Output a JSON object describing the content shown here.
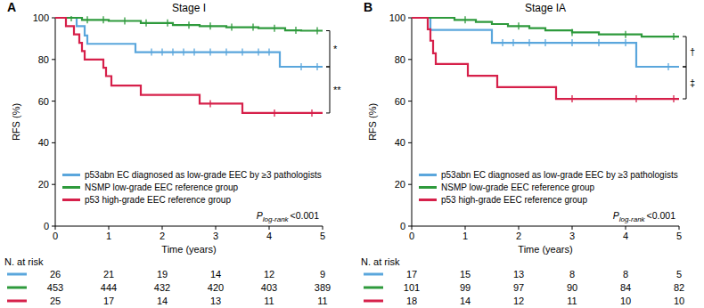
{
  "chart_data": [
    {
      "type": "line",
      "panel": "A",
      "title": "Stage I",
      "x_label": "Time (years)",
      "y_label": "RFS (%)",
      "xlim": [
        0,
        5
      ],
      "ylim": [
        0,
        100
      ],
      "xticks": [
        0,
        1,
        2,
        3,
        4,
        5
      ],
      "yticks": [
        0,
        20,
        40,
        60,
        80,
        100
      ],
      "grid": false,
      "legend": "lower left",
      "line_style": "step",
      "series": [
        {
          "name": "p53abn EC diagnosed as low-grade EEC by ≥3 pathologists",
          "color": "#5aa6dc",
          "x": [
            0,
            0.4,
            0.55,
            0.6,
            1.5,
            4.2,
            5
          ],
          "values": [
            100,
            96,
            91.5,
            87.5,
            83.5,
            76.5,
            76.5
          ],
          "censored_x": [
            1.8,
            2.0,
            2.2,
            2.4,
            2.6,
            2.9,
            3.2,
            3.5,
            3.8,
            4.0,
            4.6,
            4.9
          ]
        },
        {
          "name": "NSMP low-grade EEC reference group",
          "color": "#2e9a3c",
          "x": [
            0,
            0.5,
            1,
            1.6,
            2.2,
            2.7,
            3.2,
            3.8,
            4.3,
            4.6,
            5
          ],
          "values": [
            100,
            99,
            98.5,
            97.5,
            96.5,
            96,
            95.5,
            95,
            94,
            93.8,
            93.8
          ],
          "censored_x": [
            0.3,
            0.6,
            0.9,
            1.3,
            1.7,
            2.1,
            2.5,
            2.9,
            3.3,
            3.7,
            4.1,
            4.5,
            4.9
          ]
        },
        {
          "name": "p53 high-grade EEC reference group",
          "color": "#d6204a",
          "x": [
            0,
            0.2,
            0.35,
            0.45,
            0.5,
            0.55,
            0.9,
            0.95,
            1.05,
            1.6,
            2.7,
            3.5,
            5
          ],
          "values": [
            100,
            96,
            92,
            88,
            84,
            80,
            76,
            72,
            67.5,
            63,
            58.8,
            54.3,
            54.3
          ],
          "censored_x": [
            2.9,
            4.1,
            4.8
          ]
        }
      ],
      "p_value": {
        "symbol": "P",
        "subscript": "log-rank",
        "text": "<0.001"
      },
      "comparisons": [
        {
          "from": 1,
          "to": 0,
          "label": "*"
        },
        {
          "from": 0,
          "to": 2,
          "label": "**"
        }
      ],
      "risk_table": {
        "label": "N. at risk",
        "times": [
          0,
          1,
          2,
          3,
          4,
          5
        ],
        "rows": [
          [
            26,
            21,
            19,
            14,
            12,
            9
          ],
          [
            453,
            444,
            432,
            420,
            403,
            389
          ],
          [
            25,
            17,
            14,
            13,
            11,
            11
          ]
        ]
      }
    },
    {
      "type": "line",
      "panel": "B",
      "title": "Stage IA",
      "x_label": "Time (years)",
      "y_label": "RFS (%)",
      "xlim": [
        0,
        5
      ],
      "ylim": [
        0,
        100
      ],
      "xticks": [
        0,
        1,
        2,
        3,
        4,
        5
      ],
      "yticks": [
        0,
        20,
        40,
        60,
        80,
        100
      ],
      "grid": false,
      "legend": "lower left",
      "line_style": "step",
      "series": [
        {
          "name": "p53abn EC diagnosed as low-grade EEC by ≥3 pathologists",
          "color": "#5aa6dc",
          "x": [
            0,
            0.35,
            1.5,
            4.2,
            5
          ],
          "values": [
            100,
            94.2,
            88,
            76.5,
            76.5
          ],
          "censored_x": [
            1.7,
            1.9,
            2.2,
            2.5,
            3.0,
            3.5,
            4.0,
            4.8
          ]
        },
        {
          "name": "NSMP low-grade EEC reference group",
          "color": "#2e9a3c",
          "x": [
            0,
            0.8,
            1.2,
            1.5,
            1.8,
            2.2,
            2.5,
            3,
            3.5,
            4.3,
            5
          ],
          "values": [
            100,
            99,
            98,
            97,
            96,
            95,
            94,
            93,
            92,
            91,
            91
          ],
          "censored_x": [
            1.0,
            2.0,
            3.0,
            4.0,
            4.9
          ]
        },
        {
          "name": "p53 high-grade EEC reference group",
          "color": "#d6204a",
          "x": [
            0,
            0.3,
            0.35,
            0.4,
            0.45,
            1.05,
            1.6,
            2.7,
            5
          ],
          "values": [
            100,
            94.5,
            89,
            83,
            77.8,
            72.2,
            66.7,
            61.1,
            61.1
          ],
          "censored_x": [
            3.0,
            4.2,
            4.9
          ]
        }
      ],
      "p_value": {
        "symbol": "P",
        "subscript": "log-rank",
        "text": "<0.001"
      },
      "comparisons": [
        {
          "from": 1,
          "to": 0,
          "label": "†"
        },
        {
          "from": 0,
          "to": 2,
          "label": "‡"
        }
      ],
      "risk_table": {
        "label": "N. at risk",
        "times": [
          0,
          1,
          2,
          3,
          4,
          5
        ],
        "rows": [
          [
            17,
            15,
            13,
            8,
            8,
            5
          ],
          [
            101,
            99,
            97,
            90,
            84,
            82
          ],
          [
            18,
            14,
            12,
            11,
            10,
            10
          ]
        ]
      }
    }
  ]
}
